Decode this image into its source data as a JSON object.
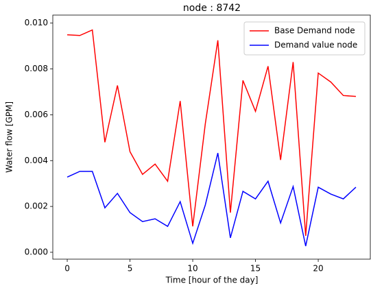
{
  "chart_data": {
    "type": "line",
    "title": "node : 8742",
    "x_label": "Time [hour of the day]",
    "y_label": "Water flow [GPM]",
    "x": [
      0,
      1,
      2,
      3,
      4,
      5,
      6,
      7,
      8,
      9,
      10,
      11,
      12,
      13,
      14,
      15,
      16,
      17,
      18,
      19,
      20,
      21,
      22,
      23
    ],
    "series": [
      {
        "name": "Base Demand node",
        "color": "#ff0000",
        "values": [
          0.00949,
          0.00946,
          0.0097,
          0.0048,
          0.00728,
          0.00439,
          0.0034,
          0.00385,
          0.0031,
          0.0066,
          0.00113,
          0.0056,
          0.00925,
          0.00173,
          0.0075,
          0.00615,
          0.00812,
          0.00403,
          0.0083,
          0.00072,
          0.00782,
          0.00743,
          0.00684,
          0.0068
        ]
      },
      {
        "name": "Demand value node",
        "color": "#0000ff",
        "values": [
          0.00328,
          0.00353,
          0.00353,
          0.00194,
          0.00257,
          0.00173,
          0.00134,
          0.00146,
          0.00113,
          0.00221,
          0.00039,
          0.00206,
          0.00433,
          0.00063,
          0.00266,
          0.00233,
          0.0031,
          0.00128,
          0.00287,
          0.00027,
          0.00284,
          0.00254,
          0.00233,
          0.00284
        ]
      }
    ],
    "xlim": [
      -1.15,
      24.15
    ],
    "xticks": [
      0,
      5,
      10,
      15,
      20
    ],
    "ylim": [
      -0.0003,
      0.01035
    ],
    "yticks": [
      {
        "value": 0,
        "label": "0.000"
      },
      {
        "value": 0.002,
        "label": "0.002"
      },
      {
        "value": 0.004,
        "label": "0.004"
      },
      {
        "value": 0.006,
        "label": "0.006"
      },
      {
        "value": 0.008,
        "label": "0.008"
      },
      {
        "value": 0.01,
        "label": "0.010"
      }
    ],
    "legend": "upper right"
  }
}
